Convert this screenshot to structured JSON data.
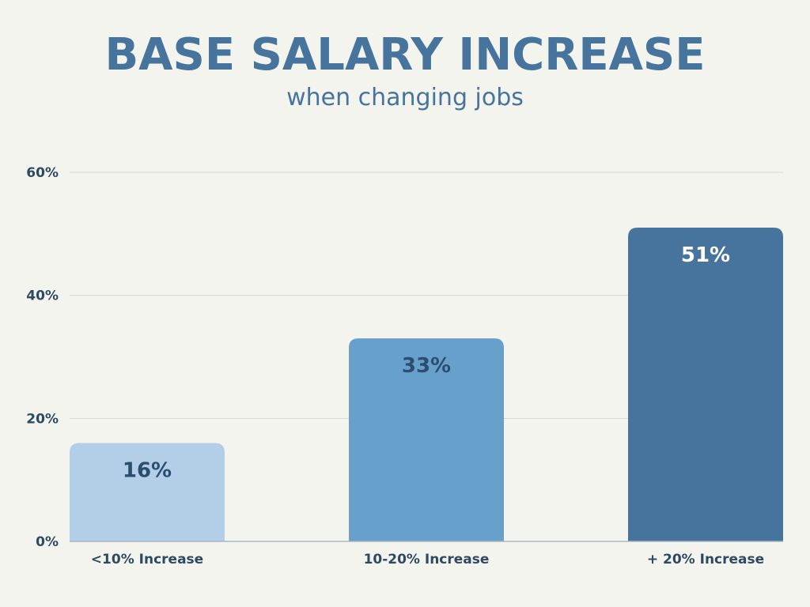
{
  "colors": {
    "background": "#f4f4ef",
    "title": "#46749c",
    "axis_text": "#2e4a63",
    "grid": "#d6d6d2",
    "baseline": "#a9b6c2",
    "bar_light": "#b3cfe8",
    "bar_mid": "#68a0cc",
    "bar_dark": "#46749c",
    "label_dark": "#2b4d70",
    "label_light": "#ffffff"
  },
  "chart_data": {
    "type": "bar",
    "title": "BASE SALARY INCREASE",
    "subtitle": "when changing jobs",
    "categories": [
      "<10% Increase",
      "10-20% Increase",
      "+ 20% Increase"
    ],
    "values": [
      16,
      33,
      51
    ],
    "data_labels": [
      "16%",
      "33%",
      "51%"
    ],
    "bar_colors": [
      "#b3cfe8",
      "#68a0cc",
      "#46749c"
    ],
    "data_label_colors": [
      "#2b4d70",
      "#2b4d70",
      "#ffffff"
    ],
    "yticks": [
      0,
      20,
      40,
      60
    ],
    "ytick_labels": [
      "0%",
      "20%",
      "40%",
      "60%"
    ],
    "ylim": [
      0,
      60
    ],
    "xlabel": "",
    "ylabel": "",
    "grid": true,
    "legend": "none"
  }
}
